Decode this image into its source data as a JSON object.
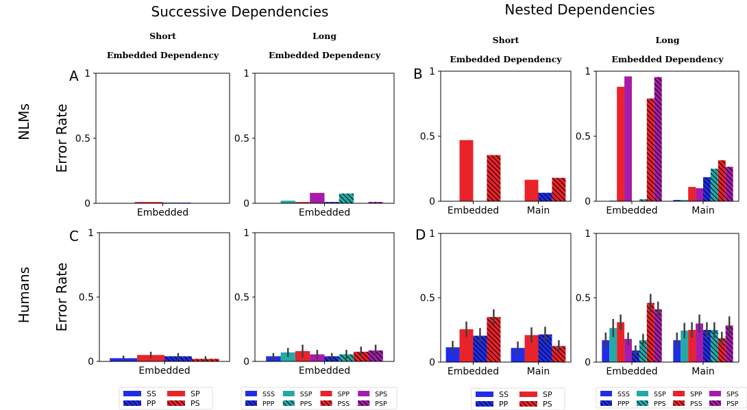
{
  "group_titles": [
    "Successive Dependencies",
    "Nested Dependencies"
  ],
  "row_labels": [
    "NLMs",
    "Humans"
  ],
  "colors": {
    "blue": "#1f2de8",
    "red": "#e8232a",
    "teal": "#22aaa8",
    "purple": "#a61caa"
  },
  "chart_data": [
    {
      "id": "successive-short-nlm",
      "panel_letter": "A",
      "header": [
        "Short",
        "Embedded Dependency"
      ],
      "type": "bar",
      "ylabel": "Error Rate",
      "ylim": [
        0,
        1
      ],
      "yticks": [
        "0",
        "0.5",
        "1"
      ],
      "categories": [
        "Embedded"
      ],
      "error_bars": false,
      "series": [
        {
          "name": "SS",
          "color": "blue",
          "hatch": false,
          "values": [
            0.0
          ]
        },
        {
          "name": "SP",
          "color": "red",
          "hatch": false,
          "values": [
            0.01
          ]
        },
        {
          "name": "PP",
          "color": "blue",
          "hatch": true,
          "values": [
            0.005
          ]
        },
        {
          "name": "PS",
          "color": "red",
          "hatch": true,
          "values": [
            0.0
          ]
        }
      ]
    },
    {
      "id": "successive-long-nlm",
      "panel_letter": "",
      "header": [
        "Long",
        "Embedded Dependency"
      ],
      "type": "bar",
      "ylabel": "",
      "ylim": [
        0,
        1
      ],
      "yticks": [
        "0",
        "0.5",
        "1"
      ],
      "categories": [
        "Embedded"
      ],
      "error_bars": false,
      "series": [
        {
          "name": "SSS",
          "color": "blue",
          "hatch": false,
          "values": [
            0.0
          ]
        },
        {
          "name": "SSP",
          "color": "teal",
          "hatch": false,
          "values": [
            0.02
          ]
        },
        {
          "name": "SPP",
          "color": "red",
          "hatch": false,
          "values": [
            0.01
          ]
        },
        {
          "name": "SPS",
          "color": "purple",
          "hatch": false,
          "values": [
            0.08
          ]
        },
        {
          "name": "PPP",
          "color": "blue",
          "hatch": true,
          "values": [
            0.01
          ]
        },
        {
          "name": "PPS",
          "color": "teal",
          "hatch": true,
          "values": [
            0.075
          ]
        },
        {
          "name": "PSS",
          "color": "red",
          "hatch": true,
          "values": [
            0.0
          ]
        },
        {
          "name": "PSP",
          "color": "purple",
          "hatch": true,
          "values": [
            0.01
          ]
        }
      ]
    },
    {
      "id": "nested-short-nlm",
      "panel_letter": "B",
      "header": [
        "Short",
        "Embedded Dependency"
      ],
      "type": "bar",
      "ylabel": "",
      "ylim": [
        0,
        1
      ],
      "yticks": [
        "0",
        "0.5",
        "1"
      ],
      "categories": [
        "Embedded",
        "Main"
      ],
      "error_bars": false,
      "series": [
        {
          "name": "SS",
          "color": "blue",
          "hatch": false,
          "values": [
            0.0,
            0.0
          ]
        },
        {
          "name": "SP",
          "color": "red",
          "hatch": false,
          "values": [
            0.47,
            0.165
          ]
        },
        {
          "name": "PP",
          "color": "blue",
          "hatch": true,
          "values": [
            0.0,
            0.065
          ]
        },
        {
          "name": "PS",
          "color": "red",
          "hatch": true,
          "values": [
            0.355,
            0.18
          ]
        }
      ]
    },
    {
      "id": "nested-long-nlm",
      "panel_letter": "",
      "header": [
        "Long",
        "Embedded Dependency"
      ],
      "type": "bar",
      "ylabel": "",
      "ylim": [
        0,
        1
      ],
      "yticks": [
        "0",
        "0.5",
        "1"
      ],
      "categories": [
        "Embedded",
        "Main"
      ],
      "error_bars": false,
      "series": [
        {
          "name": "SSS",
          "color": "blue",
          "hatch": false,
          "values": [
            0.0,
            0.01
          ]
        },
        {
          "name": "SSP",
          "color": "teal",
          "hatch": false,
          "values": [
            0.005,
            0.01
          ]
        },
        {
          "name": "SPP",
          "color": "red",
          "hatch": false,
          "values": [
            0.88,
            0.11
          ]
        },
        {
          "name": "SPS",
          "color": "purple",
          "hatch": false,
          "values": [
            0.96,
            0.1
          ]
        },
        {
          "name": "PPP",
          "color": "blue",
          "hatch": true,
          "values": [
            0.0,
            0.185
          ]
        },
        {
          "name": "PPS",
          "color": "teal",
          "hatch": true,
          "values": [
            0.015,
            0.25
          ]
        },
        {
          "name": "PSS",
          "color": "red",
          "hatch": true,
          "values": [
            0.79,
            0.315
          ]
        },
        {
          "name": "PSP",
          "color": "purple",
          "hatch": true,
          "values": [
            0.955,
            0.265
          ]
        }
      ]
    },
    {
      "id": "successive-short-human",
      "panel_letter": "C",
      "header": [],
      "type": "bar",
      "ylabel": "Error Rate",
      "ylim": [
        0,
        1
      ],
      "yticks": [
        "0",
        "0.5",
        "1"
      ],
      "categories": [
        "Embedded"
      ],
      "error_bars": true,
      "series": [
        {
          "name": "SS",
          "color": "blue",
          "hatch": false,
          "values": [
            0.025
          ],
          "errors": [
            0.02
          ]
        },
        {
          "name": "SP",
          "color": "red",
          "hatch": false,
          "values": [
            0.05
          ],
          "errors": [
            0.025
          ]
        },
        {
          "name": "PP",
          "color": "blue",
          "hatch": true,
          "values": [
            0.04
          ],
          "errors": [
            0.025
          ]
        },
        {
          "name": "PS",
          "color": "red",
          "hatch": true,
          "values": [
            0.02
          ],
          "errors": [
            0.02
          ]
        }
      ]
    },
    {
      "id": "successive-long-human",
      "panel_letter": "",
      "header": [],
      "type": "bar",
      "ylabel": "",
      "ylim": [
        0,
        1
      ],
      "yticks": [
        "0",
        "0.5",
        "1"
      ],
      "categories": [
        "Embedded"
      ],
      "error_bars": true,
      "series": [
        {
          "name": "SSS",
          "color": "blue",
          "hatch": false,
          "values": [
            0.04
          ],
          "errors": [
            0.025
          ]
        },
        {
          "name": "SSP",
          "color": "teal",
          "hatch": false,
          "values": [
            0.07
          ],
          "errors": [
            0.035
          ]
        },
        {
          "name": "SPP",
          "color": "red",
          "hatch": false,
          "values": [
            0.08
          ],
          "errors": [
            0.05
          ]
        },
        {
          "name": "SPS",
          "color": "purple",
          "hatch": false,
          "values": [
            0.055
          ],
          "errors": [
            0.035
          ]
        },
        {
          "name": "PPP",
          "color": "blue",
          "hatch": true,
          "values": [
            0.04
          ],
          "errors": [
            0.025
          ]
        },
        {
          "name": "PPS",
          "color": "teal",
          "hatch": true,
          "values": [
            0.055
          ],
          "errors": [
            0.035
          ]
        },
        {
          "name": "PSS",
          "color": "red",
          "hatch": true,
          "values": [
            0.075
          ],
          "errors": [
            0.04
          ]
        },
        {
          "name": "PSP",
          "color": "purple",
          "hatch": true,
          "values": [
            0.085
          ],
          "errors": [
            0.045
          ]
        }
      ]
    },
    {
      "id": "nested-short-human",
      "panel_letter": "D",
      "header": [],
      "type": "bar",
      "ylabel": "",
      "ylim": [
        0,
        1
      ],
      "yticks": [
        "0",
        "0.5",
        "1"
      ],
      "categories": [
        "Embedded",
        "Main"
      ],
      "error_bars": true,
      "series": [
        {
          "name": "SS",
          "color": "blue",
          "hatch": false,
          "values": [
            0.115,
            0.11
          ],
          "errors": [
            0.05,
            0.05
          ]
        },
        {
          "name": "SP",
          "color": "red",
          "hatch": false,
          "values": [
            0.255,
            0.21
          ],
          "errors": [
            0.06,
            0.06
          ]
        },
        {
          "name": "PP",
          "color": "blue",
          "hatch": true,
          "values": [
            0.205,
            0.215
          ],
          "errors": [
            0.06,
            0.06
          ]
        },
        {
          "name": "PS",
          "color": "red",
          "hatch": true,
          "values": [
            0.35,
            0.125
          ],
          "errors": [
            0.06,
            0.045
          ]
        }
      ]
    },
    {
      "id": "nested-long-human",
      "panel_letter": "",
      "header": [],
      "type": "bar",
      "ylabel": "",
      "ylim": [
        0,
        1
      ],
      "yticks": [
        "0",
        "0.5",
        "1"
      ],
      "categories": [
        "Embedded",
        "Main"
      ],
      "error_bars": true,
      "series": [
        {
          "name": "SSS",
          "color": "blue",
          "hatch": false,
          "values": [
            0.17,
            0.17
          ],
          "errors": [
            0.06,
            0.06
          ]
        },
        {
          "name": "SSP",
          "color": "teal",
          "hatch": false,
          "values": [
            0.265,
            0.245
          ],
          "errors": [
            0.07,
            0.06
          ]
        },
        {
          "name": "SPP",
          "color": "red",
          "hatch": false,
          "values": [
            0.31,
            0.25
          ],
          "errors": [
            0.06,
            0.06
          ]
        },
        {
          "name": "SPS",
          "color": "purple",
          "hatch": false,
          "values": [
            0.18,
            0.3
          ],
          "errors": [
            0.05,
            0.07
          ]
        },
        {
          "name": "PPP",
          "color": "blue",
          "hatch": true,
          "values": [
            0.09,
            0.25
          ],
          "errors": [
            0.04,
            0.06
          ]
        },
        {
          "name": "PPS",
          "color": "teal",
          "hatch": true,
          "values": [
            0.17,
            0.25
          ],
          "errors": [
            0.05,
            0.06
          ]
        },
        {
          "name": "PSS",
          "color": "red",
          "hatch": true,
          "values": [
            0.46,
            0.185
          ],
          "errors": [
            0.07,
            0.05
          ]
        },
        {
          "name": "PSP",
          "color": "purple",
          "hatch": true,
          "values": [
            0.41,
            0.285
          ],
          "errors": [
            0.06,
            0.07
          ]
        }
      ]
    }
  ],
  "legends": [
    {
      "id": "legend-successive-short",
      "items": [
        [
          "SS",
          "blue",
          false
        ],
        [
          "SP",
          "red",
          false
        ],
        [
          "PP",
          "blue",
          true
        ],
        [
          "PS",
          "red",
          true
        ]
      ],
      "columns": 2
    },
    {
      "id": "legend-successive-long",
      "items": [
        [
          "SSS",
          "blue",
          false
        ],
        [
          "SSP",
          "teal",
          false
        ],
        [
          "SPP",
          "red",
          false
        ],
        [
          "SPS",
          "purple",
          false
        ],
        [
          "PPP",
          "blue",
          true
        ],
        [
          "PPS",
          "teal",
          true
        ],
        [
          "PSS",
          "red",
          true
        ],
        [
          "PSP",
          "purple",
          true
        ]
      ],
      "columns": 4
    },
    {
      "id": "legend-nested-short",
      "items": [
        [
          "SS",
          "blue",
          false
        ],
        [
          "SP",
          "red",
          false
        ],
        [
          "PP",
          "blue",
          true
        ],
        [
          "PS",
          "red",
          true
        ]
      ],
      "columns": 2
    },
    {
      "id": "legend-nested-long",
      "items": [
        [
          "SSS",
          "blue",
          false
        ],
        [
          "SSP",
          "teal",
          false
        ],
        [
          "SPP",
          "red",
          false
        ],
        [
          "SPS",
          "purple",
          false
        ],
        [
          "PPP",
          "blue",
          true
        ],
        [
          "PPS",
          "teal",
          true
        ],
        [
          "PSS",
          "red",
          true
        ],
        [
          "PSP",
          "purple",
          true
        ]
      ],
      "columns": 4
    }
  ]
}
